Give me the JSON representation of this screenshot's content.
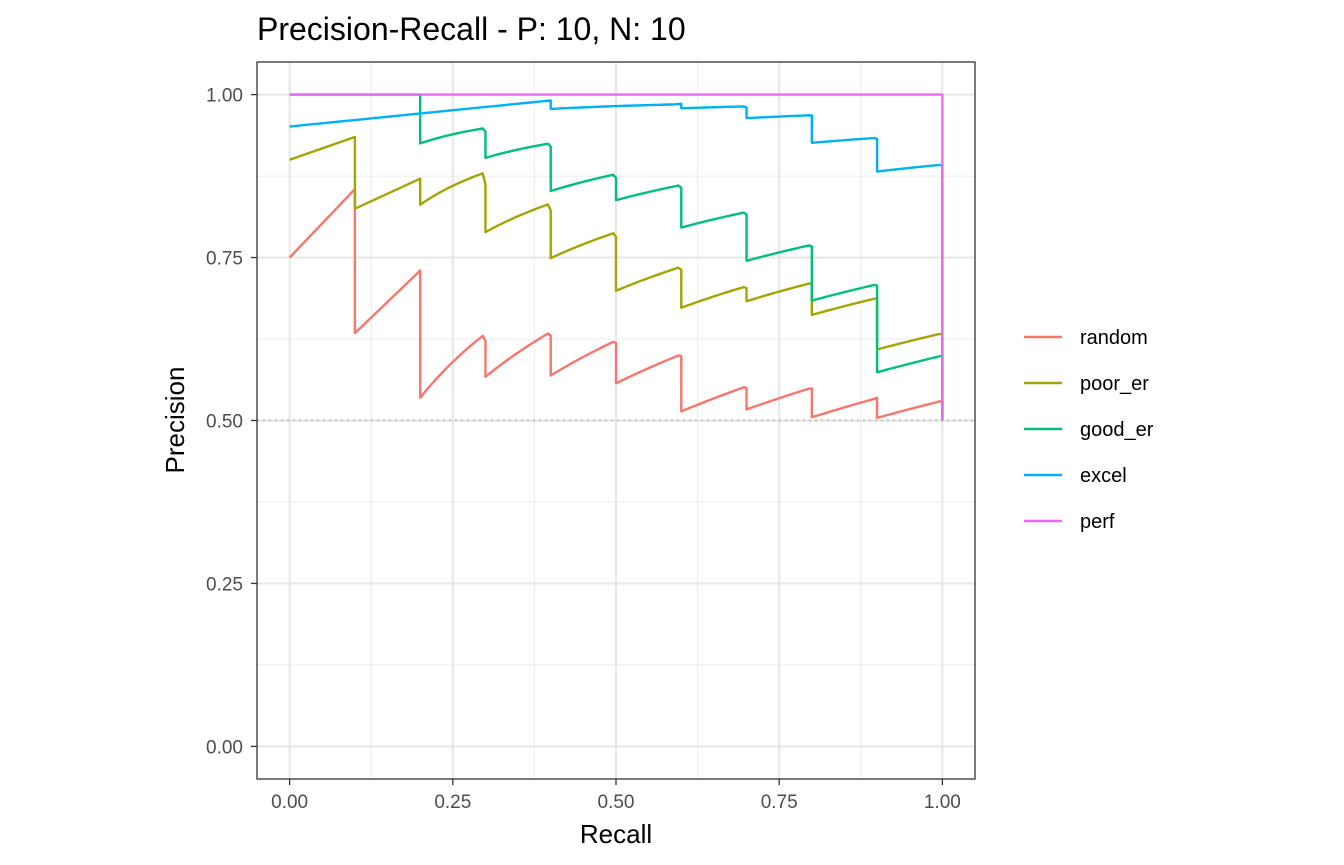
{
  "chart_data": {
    "type": "line",
    "title": "Precision-Recall - P: 10, N: 10",
    "xlabel": "Recall",
    "ylabel": "Precision",
    "xlim": [
      -0.05,
      1.05
    ],
    "ylim": [
      -0.05,
      1.05
    ],
    "x_ticks": [
      0,
      0.25,
      0.5,
      0.75,
      1
    ],
    "x_tick_labels": [
      "0.00",
      "0.25",
      "0.50",
      "0.75",
      "1.00"
    ],
    "y_ticks": [
      0,
      0.25,
      0.5,
      0.75,
      1
    ],
    "y_tick_labels": [
      "0.00",
      "0.25",
      "0.50",
      "0.75",
      "1.00"
    ],
    "grid": true,
    "baseline": 0.5,
    "legend_position": "right",
    "series": [
      {
        "name": "random",
        "color": "#F8766D",
        "points": [
          {
            "x": 0.0,
            "y": 0.75
          },
          {
            "x": 0.1,
            "y": 0.855,
            "drop_to": 0.634
          },
          {
            "x": 0.2,
            "y": 0.73,
            "drop_to": 0.535
          },
          {
            "x": 0.3,
            "y": 0.622,
            "drop_to": 0.567
          },
          {
            "x": 0.4,
            "y": 0.63,
            "drop_to": 0.569
          },
          {
            "x": 0.5,
            "y": 0.619,
            "drop_to": 0.557
          },
          {
            "x": 0.6,
            "y": 0.599,
            "drop_to": 0.514
          },
          {
            "x": 0.7,
            "y": 0.55,
            "drop_to": 0.517
          },
          {
            "x": 0.8,
            "y": 0.549,
            "drop_to": 0.505
          },
          {
            "x": 0.9,
            "y": 0.535,
            "drop_to": 0.504
          },
          {
            "x": 1.0,
            "y": 0.53,
            "drop_to": 0.5
          }
        ]
      },
      {
        "name": "poor_er",
        "color": "#A3A500",
        "points": [
          {
            "x": 0.0,
            "y": 0.9
          },
          {
            "x": 0.1,
            "y": 0.935,
            "drop_to": 0.825
          },
          {
            "x": 0.2,
            "y": 0.871,
            "drop_to": 0.831
          },
          {
            "x": 0.3,
            "y": 0.862,
            "drop_to": 0.789
          },
          {
            "x": 0.4,
            "y": 0.822,
            "drop_to": 0.749
          },
          {
            "x": 0.5,
            "y": 0.782,
            "drop_to": 0.699
          },
          {
            "x": 0.6,
            "y": 0.731,
            "drop_to": 0.673
          },
          {
            "x": 0.7,
            "y": 0.703,
            "drop_to": 0.683
          },
          {
            "x": 0.8,
            "y": 0.71,
            "drop_to": 0.662
          },
          {
            "x": 0.9,
            "y": 0.687,
            "drop_to": 0.609
          },
          {
            "x": 1.0,
            "y": 0.632,
            "drop_to": 0.5
          }
        ]
      },
      {
        "name": "good_er",
        "color": "#00BF7D",
        "points": [
          {
            "x": 0.0,
            "y": 1.0
          },
          {
            "x": 0.2,
            "y": 1.0,
            "drop_to": 0.925
          },
          {
            "x": 0.3,
            "y": 0.943,
            "drop_to": 0.903
          },
          {
            "x": 0.4,
            "y": 0.92,
            "drop_to": 0.852
          },
          {
            "x": 0.5,
            "y": 0.872,
            "drop_to": 0.838
          },
          {
            "x": 0.6,
            "y": 0.857,
            "drop_to": 0.796
          },
          {
            "x": 0.7,
            "y": 0.816,
            "drop_to": 0.745
          },
          {
            "x": 0.8,
            "y": 0.767,
            "drop_to": 0.684
          },
          {
            "x": 0.9,
            "y": 0.707,
            "drop_to": 0.574
          },
          {
            "x": 1.0,
            "y": 0.599,
            "drop_to": 0.5
          }
        ]
      },
      {
        "name": "excel",
        "color": "#00B0F6",
        "points": [
          {
            "x": 0.0,
            "y": 0.951
          },
          {
            "x": 0.4,
            "y": 0.991,
            "drop_to": 0.978
          },
          {
            "x": 0.6,
            "y": 0.986,
            "drop_to": 0.979
          },
          {
            "x": 0.7,
            "y": 0.98,
            "drop_to": 0.964
          },
          {
            "x": 0.8,
            "y": 0.968,
            "drop_to": 0.926
          },
          {
            "x": 0.9,
            "y": 0.932,
            "drop_to": 0.882
          },
          {
            "x": 1.0,
            "y": 0.891,
            "drop_to": 0.5
          }
        ]
      },
      {
        "name": "perf",
        "color": "#E76BF3",
        "points": [
          {
            "x": 0.0,
            "y": 1.0
          },
          {
            "x": 1.0,
            "y": 1.0,
            "drop_to": 0.5
          }
        ]
      }
    ]
  }
}
